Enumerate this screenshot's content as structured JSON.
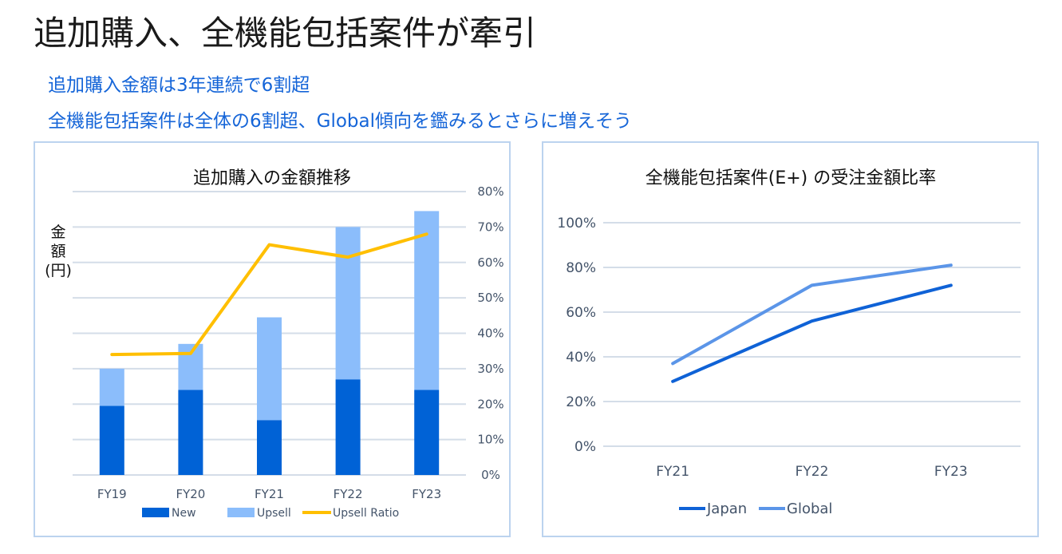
{
  "header": {
    "title": "追加購入、全機能包括案件が牽引",
    "bullets": [
      "追加購入金額は3年連続で6割超",
      "全機能包括案件は全体の6割超、Global傾向を鑑みるとさらに増えそう"
    ]
  },
  "colors": {
    "new": "#0062d6",
    "upsell": "#8bbdfb",
    "ratio": "#ffbf00",
    "japan": "#0f62d6",
    "global": "#5b95e8",
    "grid": "#d4dde8",
    "subtitle": "#1565d8"
  },
  "chart_data": [
    {
      "type": "bar",
      "stacked": true,
      "title": "追加購入の金額推移",
      "ylabel_left": [
        "金",
        "額",
        "(円)"
      ],
      "ylabel_right": "",
      "categories": [
        "FY19",
        "FY20",
        "FY21",
        "FY22",
        "FY23"
      ],
      "series": [
        {
          "name": "New",
          "kind": "bar",
          "axis": "left",
          "values": [
            1.95,
            2.4,
            1.55,
            2.7,
            2.4
          ]
        },
        {
          "name": "Upsell",
          "kind": "bar",
          "axis": "left",
          "values": [
            1.05,
            1.3,
            2.9,
            4.3,
            5.05
          ]
        },
        {
          "name": "Upsell Ratio",
          "kind": "line",
          "axis": "right",
          "values": [
            34,
            34.3,
            65,
            61.5,
            68
          ]
        }
      ],
      "left_axis_range": [
        0,
        8
      ],
      "right_axis": {
        "range": [
          0,
          80
        ],
        "ticks": [
          "0%",
          "10%",
          "20%",
          "30%",
          "40%",
          "50%",
          "60%",
          "70%",
          "80%"
        ]
      },
      "grid": true,
      "legend": {
        "position": "bottom",
        "entries": [
          "New",
          "Upsell",
          "Upsell Ratio"
        ]
      }
    },
    {
      "type": "line",
      "title": "全機能包括案件(E+) の受注金額比率",
      "categories": [
        "FY21",
        "FY22",
        "FY23"
      ],
      "series": [
        {
          "name": "Japan",
          "values": [
            29,
            56,
            72
          ]
        },
        {
          "name": "Global",
          "values": [
            37,
            72,
            81
          ]
        }
      ],
      "y_axis": {
        "range": [
          0,
          100
        ],
        "ticks": [
          "0%",
          "20%",
          "40%",
          "60%",
          "80%",
          "100%"
        ]
      },
      "grid": true,
      "legend": {
        "position": "bottom",
        "entries": [
          "Japan",
          "Global"
        ]
      }
    }
  ]
}
